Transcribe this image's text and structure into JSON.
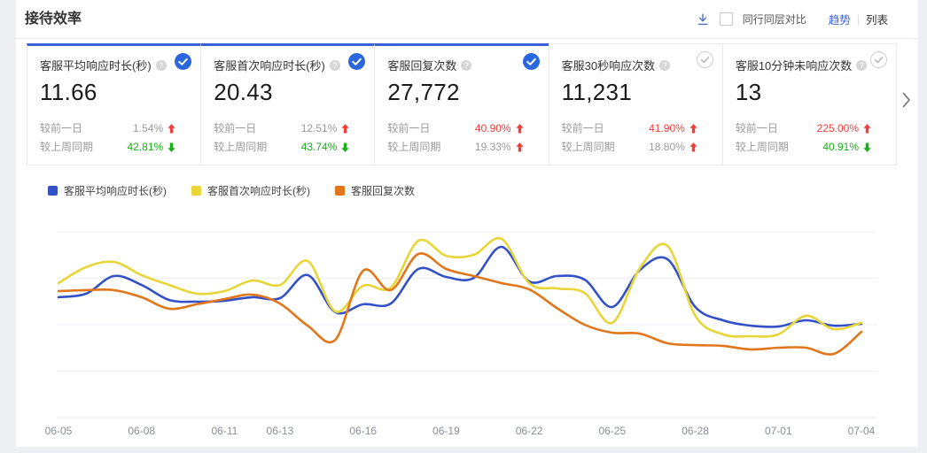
{
  "header": {
    "title": "接待效率",
    "download_icon": "download-icon",
    "compare_checkbox_label": "同行同层对比",
    "view_trend": "趋势",
    "view_divider": "|",
    "view_list": "列表"
  },
  "cards": [
    {
      "title": "客服平均响应时长(秒)",
      "value": "11.66",
      "selected": true,
      "rows": [
        {
          "label": "较前一日",
          "value": "1.54%",
          "value_color": "grey",
          "direction": "up"
        },
        {
          "label": "较上周同期",
          "value": "42.81%",
          "value_color": "green",
          "direction": "down"
        }
      ]
    },
    {
      "title": "客服首次响应时长(秒)",
      "value": "20.43",
      "selected": true,
      "rows": [
        {
          "label": "较前一日",
          "value": "12.51%",
          "value_color": "grey",
          "direction": "up"
        },
        {
          "label": "较上周同期",
          "value": "43.74%",
          "value_color": "green",
          "direction": "down"
        }
      ]
    },
    {
      "title": "客服回复次数",
      "value": "27,772",
      "selected": true,
      "rows": [
        {
          "label": "较前一日",
          "value": "40.90%",
          "value_color": "red",
          "direction": "up"
        },
        {
          "label": "较上周同期",
          "value": "19.33%",
          "value_color": "grey",
          "direction": "up"
        }
      ]
    },
    {
      "title": "客服30秒响应次数",
      "value": "11,231",
      "selected": false,
      "rows": [
        {
          "label": "较前一日",
          "value": "41.90%",
          "value_color": "red",
          "direction": "up"
        },
        {
          "label": "较上周同期",
          "value": "18.80%",
          "value_color": "grey",
          "direction": "up"
        }
      ]
    },
    {
      "title": "客服10分钟未响应次数",
      "value": "13",
      "selected": false,
      "rows": [
        {
          "label": "较前一日",
          "value": "225.00%",
          "value_color": "red",
          "direction": "up"
        },
        {
          "label": "较上周同期",
          "value": "40.91%",
          "value_color": "green",
          "direction": "down"
        }
      ]
    }
  ],
  "carousel_next_icon": "chevron-right-icon",
  "colors": {
    "accent": "#3a62d8",
    "up_red": "#f03e3e",
    "down_green": "#15b015"
  },
  "chart_data": {
    "type": "line",
    "title": "",
    "categories": [
      "06-05",
      "06-06",
      "06-07",
      "06-08",
      "06-09",
      "06-10",
      "06-11",
      "06-12",
      "06-13",
      "06-14",
      "06-15",
      "06-16",
      "06-17",
      "06-18",
      "06-19",
      "06-20",
      "06-21",
      "06-22",
      "06-23",
      "06-24",
      "06-25",
      "06-26",
      "06-27",
      "06-28",
      "06-29",
      "06-30",
      "07-01",
      "07-02",
      "07-03",
      "07-04"
    ],
    "x_tick_labels": [
      "06-05",
      "06-08",
      "06-11",
      "06-13",
      "06-16",
      "06-19",
      "06-22",
      "06-25",
      "06-28",
      "07-01",
      "07-04"
    ],
    "y_axis_visible": false,
    "ylim": [
      0,
      100
    ],
    "grid": true,
    "legend_position": "top",
    "series": [
      {
        "name": "客服平均响应时长(秒)",
        "color": "#3351c6",
        "values": [
          64.8,
          66.7,
          76.2,
          71.4,
          63.3,
          62.4,
          62.9,
          64.8,
          64.3,
          76.7,
          56.7,
          61.0,
          61.4,
          80.0,
          75.7,
          75.2,
          91.9,
          73.3,
          76.2,
          74.3,
          59.5,
          79.5,
          85.2,
          59.5,
          52.4,
          49.5,
          49.0,
          52.4,
          49.5,
          50.5
        ]
      },
      {
        "name": "客服首次响应时长(秒)",
        "color": "#e7d636",
        "values": [
          72.4,
          81.0,
          83.8,
          76.7,
          71.4,
          66.7,
          68.1,
          73.8,
          71.4,
          84.3,
          57.1,
          71.0,
          70.0,
          95.2,
          87.1,
          87.6,
          96.2,
          72.4,
          69.5,
          67.1,
          51.0,
          80.5,
          92.4,
          54.8,
          44.8,
          43.8,
          44.8,
          54.8,
          47.6,
          51.0
        ]
      },
      {
        "name": "客服回复次数",
        "color": "#e2761b",
        "values": [
          68.1,
          68.6,
          68.6,
          64.8,
          58.6,
          61.0,
          63.8,
          66.2,
          61.4,
          49.5,
          41.9,
          79.0,
          68.6,
          88.1,
          80.0,
          76.2,
          72.4,
          69.0,
          59.0,
          50.0,
          45.7,
          45.2,
          40.0,
          39.0,
          38.6,
          36.7,
          37.6,
          37.6,
          34.3,
          46.2
        ]
      }
    ]
  }
}
